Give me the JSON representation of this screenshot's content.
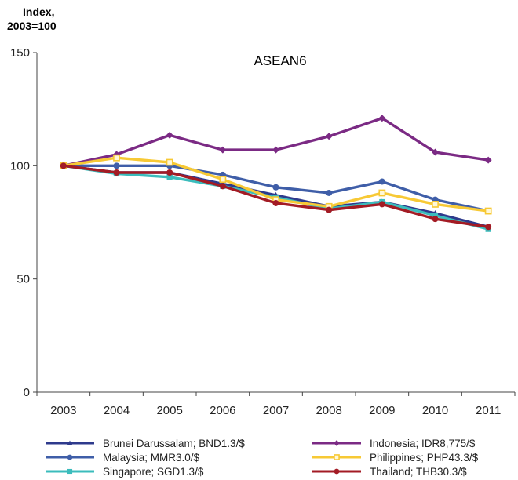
{
  "chart_data": {
    "type": "line",
    "title": "ASEAN6",
    "ylabel_line1": "Index,",
    "ylabel_line2": "2003=100",
    "xlabel": "",
    "x": [
      "2003",
      "2004",
      "2005",
      "2006",
      "2007",
      "2008",
      "2009",
      "2010",
      "2011"
    ],
    "ylim": [
      0,
      150
    ],
    "yticks": [
      0,
      50,
      100,
      150
    ],
    "grid": false,
    "legend_position": "bottom",
    "series": [
      {
        "name": "Brunei Darussalam; BND1.3/$",
        "color": "#2e3a8c",
        "marker": "triangle",
        "values": [
          100,
          97,
          97,
          92,
          87,
          82,
          84,
          79,
          73
        ]
      },
      {
        "name": "Indonesia; IDR8,775/$",
        "color": "#7b2a84",
        "marker": "diamond",
        "values": [
          100,
          105,
          113.5,
          107,
          107,
          113,
          121,
          106,
          102.5
        ]
      },
      {
        "name": "Malaysia; MMR3.0/$",
        "color": "#3f5ea8",
        "marker": "circle",
        "values": [
          100,
          100,
          100,
          96,
          90.5,
          88,
          93,
          85,
          80
        ]
      },
      {
        "name": "Philippines; PHP43.3/$",
        "color": "#f7c935",
        "marker": "square-open",
        "values": [
          100,
          103.5,
          101.5,
          94,
          85,
          82,
          88,
          83,
          80
        ]
      },
      {
        "name": "Singapore; SGD1.3/$",
        "color": "#3bbcbc",
        "marker": "square",
        "values": [
          100,
          96.5,
          95,
          91,
          86,
          81,
          84,
          78,
          72
        ]
      },
      {
        "name": "Thailand; THB30.3/$",
        "color": "#a31b24",
        "marker": "circle",
        "values": [
          100,
          97,
          97,
          91,
          83.5,
          80.5,
          83,
          76.5,
          73
        ]
      }
    ]
  }
}
